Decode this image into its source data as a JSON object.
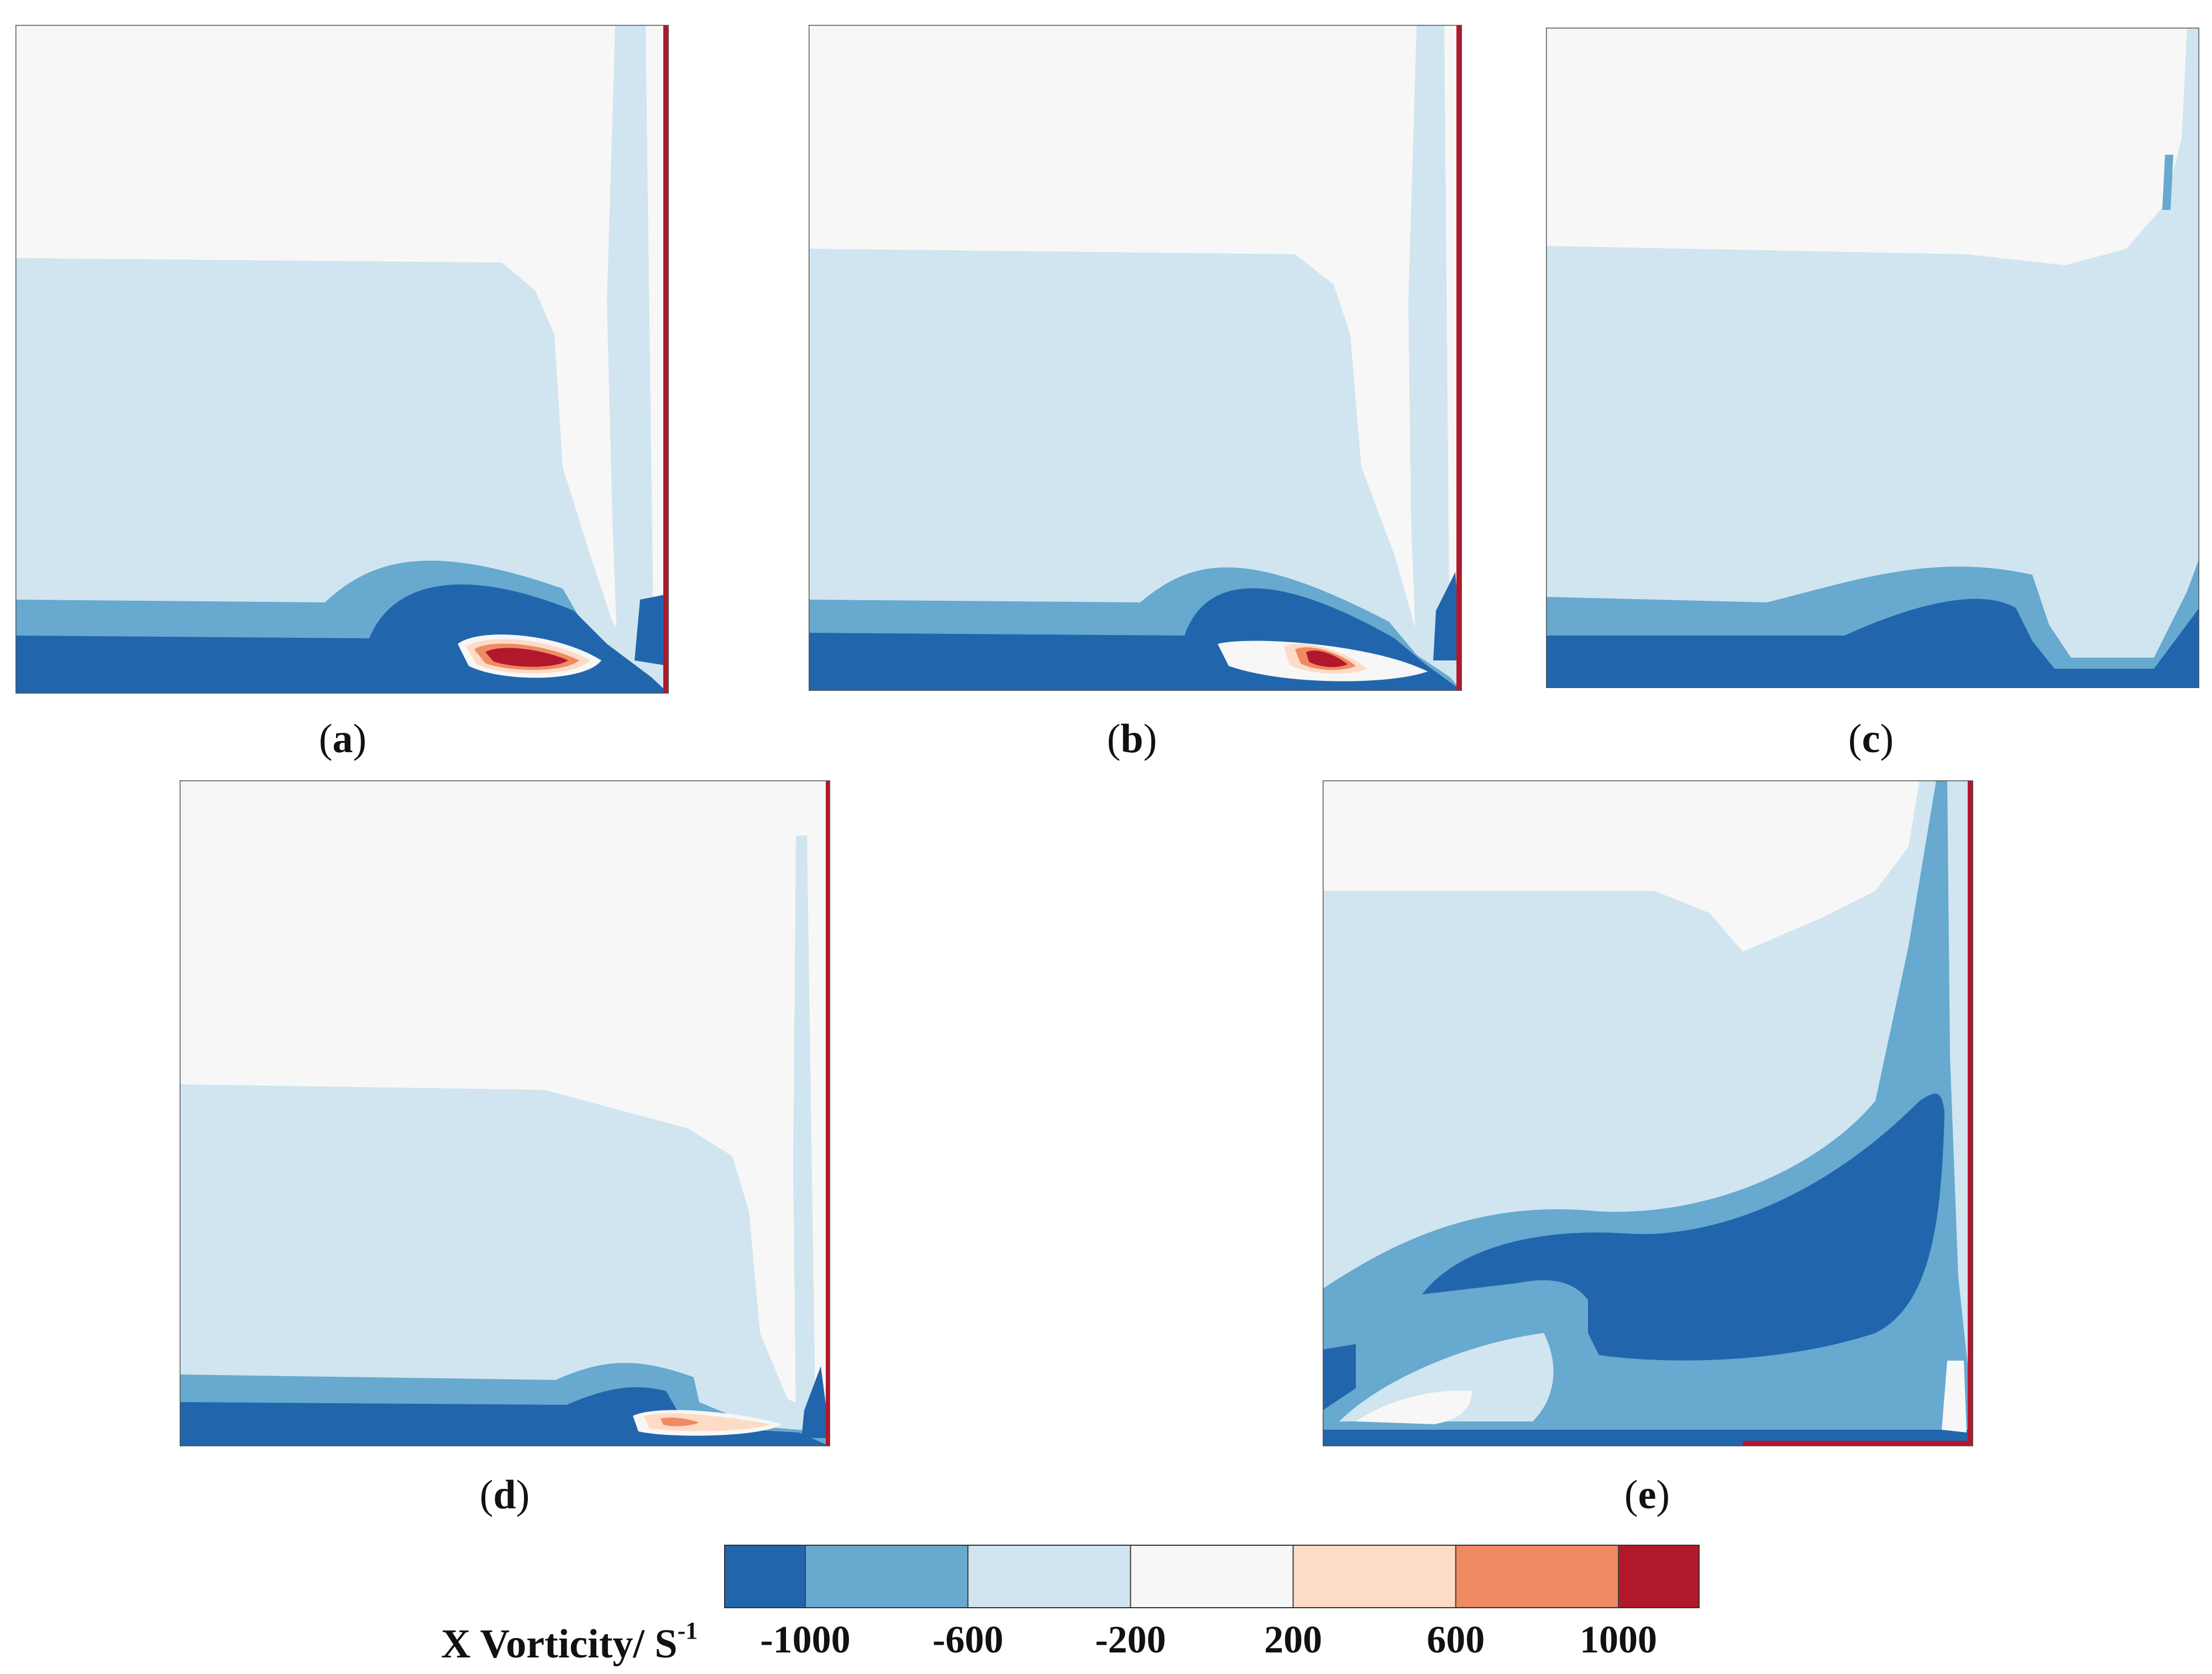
{
  "panels": [
    {
      "id": "a",
      "label": "a"
    },
    {
      "id": "b",
      "label": "b"
    },
    {
      "id": "c",
      "label": "c"
    },
    {
      "id": "d",
      "label": "d"
    },
    {
      "id": "e",
      "label": "e"
    }
  ],
  "colorbar": {
    "title": "X Vorticity/ S",
    "title_exponent": "-1",
    "ticks": [
      "-1000",
      "-600",
      "-200",
      "200",
      "600",
      "1000"
    ],
    "colors": [
      "#2166ac",
      "#67a9cf",
      "#d1e5f0",
      "#f7f7f7",
      "#fddbc7",
      "#ef8a62",
      "#b2182b"
    ]
  }
}
